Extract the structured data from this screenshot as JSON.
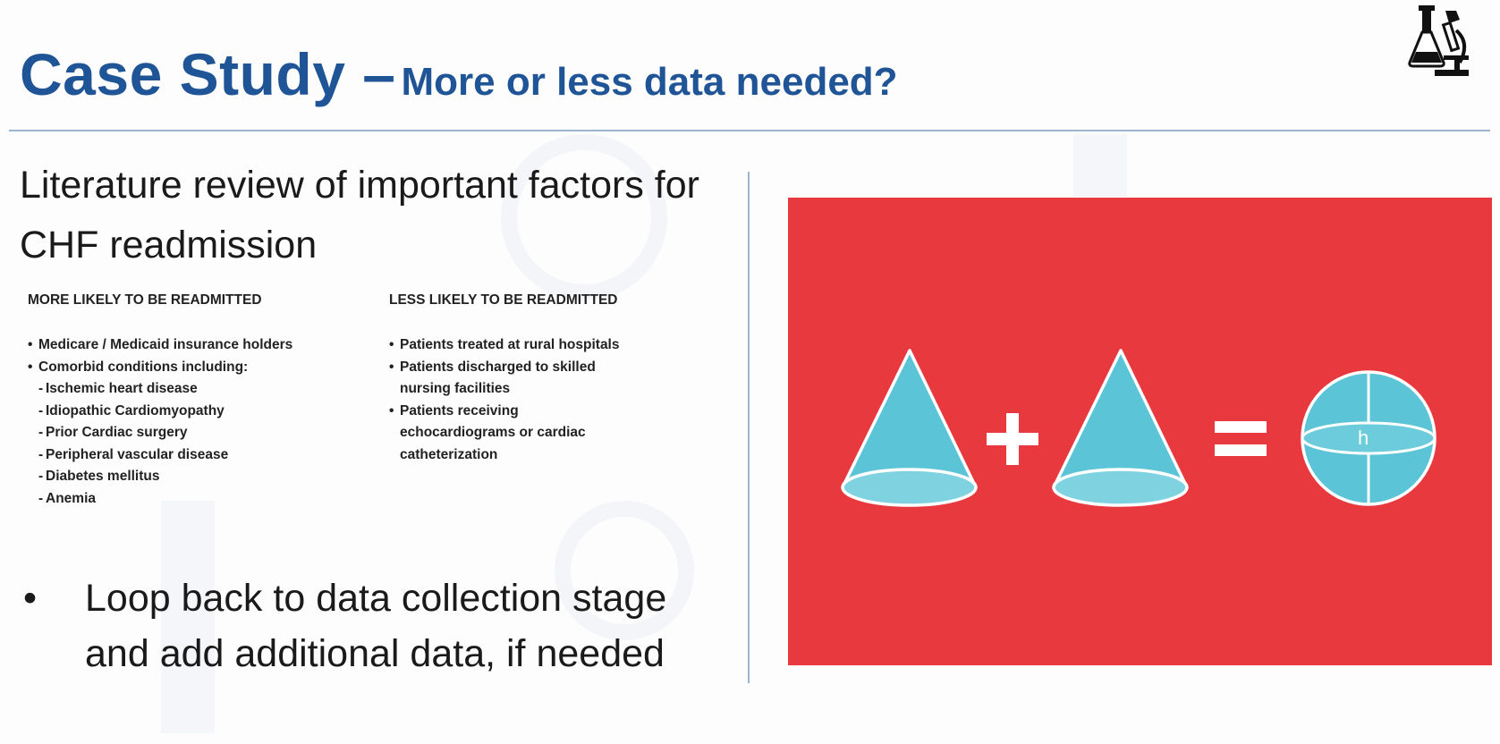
{
  "slide": {
    "title_main": "Case Study –",
    "title_sub": "More or less data needed?",
    "heading": "Literature review of important factors for CHF readmission",
    "more_likely": {
      "heading": "MORE LIKELY TO BE READMITTED",
      "items": [
        {
          "bullet": "•",
          "text": "Medicare / Medicaid insurance holders"
        },
        {
          "bullet": "•",
          "text": "Comorbid conditions including:"
        }
      ],
      "subitems": [
        {
          "bullet": "-",
          "text": "Ischemic heart disease"
        },
        {
          "bullet": "-",
          "text": "Idiopathic Cardiomyopathy"
        },
        {
          "bullet": "-",
          "text": "Prior Cardiac surgery"
        },
        {
          "bullet": "-",
          "text": "Peripheral vascular disease"
        },
        {
          "bullet": "-",
          "text": "Diabetes mellitus"
        },
        {
          "bullet": "-",
          "text": "Anemia"
        }
      ]
    },
    "less_likely": {
      "heading": "LESS LIKELY TO BE READMITTED",
      "items": [
        {
          "bullet": "•",
          "lines": [
            "Patients treated at rural hospitals"
          ]
        },
        {
          "bullet": "•",
          "lines": [
            "Patients discharged to skilled",
            "nursing facilities"
          ]
        },
        {
          "bullet": "•",
          "lines": [
            "Patients receiving",
            "echocardiograms or cardiac",
            "catheterization"
          ]
        }
      ]
    },
    "bullet_symbol": "•",
    "bullet_text": "Loop back to data collection stage and add additional data, if needed"
  },
  "illustration": {
    "background_color": "#e8393f",
    "shape_color": "#5bc4d6",
    "outline_color": "#ffffff",
    "plus_symbol": "+",
    "equals_symbol": "=",
    "sphere_label": "h",
    "icons": [
      "cone-icon",
      "plus-icon",
      "cone-icon",
      "equals-icon",
      "sphere-icon"
    ]
  },
  "colors": {
    "title": "#1f5596",
    "rule": "#9db4cf",
    "body_text": "#1a1a1a"
  }
}
